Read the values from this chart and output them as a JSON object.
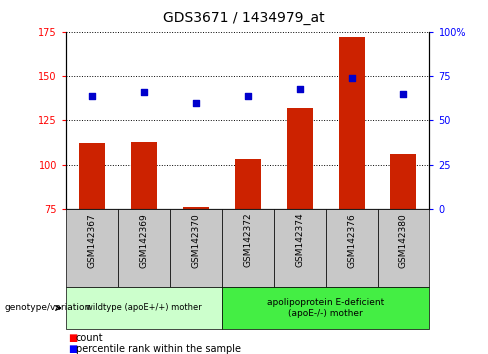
{
  "title": "GDS3671 / 1434979_at",
  "samples": [
    "GSM142367",
    "GSM142369",
    "GSM142370",
    "GSM142372",
    "GSM142374",
    "GSM142376",
    "GSM142380"
  ],
  "bar_heights": [
    112,
    113,
    76,
    103,
    132,
    172,
    106
  ],
  "scatter_y_left": [
    139,
    141,
    135,
    139,
    143,
    149,
    140
  ],
  "bar_color": "#CC2200",
  "scatter_color": "#0000CC",
  "ylim_left": [
    75,
    175
  ],
  "ylim_right": [
    0,
    100
  ],
  "yticks_left": [
    75,
    100,
    125,
    150,
    175
  ],
  "yticks_right": [
    0,
    25,
    50,
    75,
    100
  ],
  "ytick_labels_right": [
    "0",
    "25",
    "50",
    "75",
    "100%"
  ],
  "group1_label": "wildtype (apoE+/+) mother",
  "group2_label": "apolipoprotein E-deficient\n(apoE-/-) mother",
  "group1_color": "#CCFFCC",
  "group2_color": "#44EE44",
  "xlabel_left": "genotype/variation",
  "legend_bar": "count",
  "legend_scatter": "percentile rank within the sample",
  "plot_bg_color": "#FFFFFF",
  "sample_bg_color": "#C8C8C8",
  "bar_bottom": 75
}
